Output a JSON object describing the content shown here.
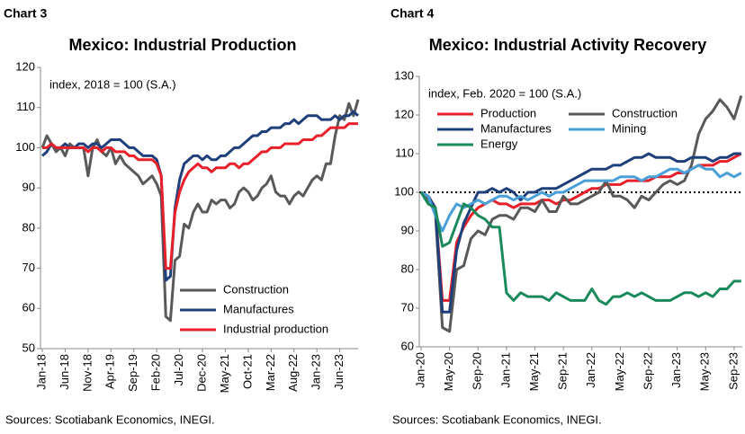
{
  "chart_data": [
    {
      "type": "line",
      "label": "Chart 3",
      "title": "Mexico: Industrial Production",
      "subtitle": "index, 2018 = 100 (S.A.)",
      "source": "Sources: Scotiabank Economics, INEGI.",
      "categories": [
        "Jan-18",
        null,
        null,
        null,
        null,
        "Jun-18",
        null,
        null,
        null,
        null,
        "Nov-18",
        null,
        null,
        null,
        null,
        "Apr-19",
        null,
        null,
        null,
        null,
        "Sep-19",
        null,
        null,
        null,
        null,
        "Feb-20",
        null,
        null,
        null,
        null,
        "Jul-20",
        null,
        null,
        null,
        null,
        "Dec-20",
        null,
        null,
        null,
        null,
        "May-21",
        null,
        null,
        null,
        null,
        "Oct-21",
        null,
        null,
        null,
        null,
        "Mar-22",
        null,
        null,
        null,
        null,
        "Aug-22",
        null,
        null,
        null,
        null,
        "Jan-23",
        null,
        null,
        null,
        null,
        "Jun-23",
        null,
        null,
        null,
        null
      ],
      "series": [
        {
          "name": "Construction",
          "color": "#595959",
          "values": [
            100,
            103,
            101,
            99,
            100,
            98,
            101,
            100,
            100,
            100,
            93,
            100,
            102,
            99,
            98,
            100,
            96,
            98,
            96,
            95,
            94,
            93,
            91,
            92,
            93,
            91,
            88,
            58,
            57,
            72,
            73,
            81,
            80,
            84,
            86,
            84,
            84,
            87,
            86,
            87,
            87,
            85,
            86,
            89,
            90,
            89,
            87,
            88,
            90,
            91,
            93,
            89,
            88,
            88,
            86,
            88,
            89,
            88,
            90,
            92,
            93,
            92,
            96,
            96,
            103,
            108,
            107,
            111,
            108,
            112
          ]
        },
        {
          "name": "Manufactures",
          "color": "#1f3f7a",
          "values": [
            98,
            99,
            101,
            100,
            100,
            101,
            100,
            100,
            101,
            101,
            100,
            101,
            101,
            100,
            101,
            102,
            102,
            102,
            101,
            100,
            100,
            99,
            98,
            98,
            98,
            97,
            93,
            67,
            68,
            85,
            92,
            96,
            97,
            98,
            98,
            97,
            98,
            97,
            97,
            98,
            98,
            99,
            100,
            100,
            101,
            102,
            103,
            103,
            104,
            104,
            105,
            105,
            105,
            106,
            106,
            107,
            106,
            107,
            108,
            108,
            108,
            107,
            107,
            107,
            108,
            107,
            108,
            108,
            109,
            108
          ]
        },
        {
          "name": "Industrial production",
          "color": "#e8202a",
          "values": [
            100,
            100,
            101,
            100,
            100,
            100,
            100,
            100,
            100,
            100,
            99,
            100,
            100,
            99,
            100,
            100,
            99,
            99,
            99,
            98,
            98,
            97,
            97,
            97,
            97,
            96,
            93,
            70,
            70,
            84,
            89,
            92,
            94,
            95,
            96,
            95,
            95,
            94,
            95,
            95,
            95,
            96,
            96,
            95,
            96,
            96,
            97,
            98,
            99,
            99,
            100,
            100,
            100,
            101,
            101,
            101,
            101,
            102,
            102,
            102,
            103,
            103,
            104,
            105,
            105,
            105,
            105,
            106,
            106,
            106
          ]
        }
      ],
      "ylim": [
        50,
        120
      ],
      "yticks": [
        50,
        60,
        70,
        80,
        90,
        100,
        110,
        120
      ],
      "legend": "lower right"
    },
    {
      "type": "line",
      "label": "Chart 4",
      "title": "Mexico: Industrial Activity Recovery",
      "subtitle": "index, Feb. 2020 = 100 (S.A.)",
      "source": "Sources: Scotiabank Economics, INEGI.",
      "categories": [
        "Jan-20",
        null,
        null,
        null,
        "May-20",
        null,
        null,
        null,
        "Sep-20",
        null,
        null,
        null,
        "Jan-21",
        null,
        null,
        null,
        "May-21",
        null,
        null,
        null,
        "Sep-21",
        null,
        null,
        null,
        "Jan-22",
        null,
        null,
        null,
        "May-22",
        null,
        null,
        null,
        "Sep-22",
        null,
        null,
        null,
        "Jan-23",
        null,
        null,
        null,
        "May-23",
        null,
        null,
        null,
        "Sep-23",
        null
      ],
      "series": [
        {
          "name": "Production",
          "color": "#e8202a",
          "values": [
            100,
            99,
            96,
            72,
            72,
            87,
            91,
            94,
            96,
            97,
            98,
            97,
            97,
            96,
            97,
            97,
            97,
            98,
            98,
            97,
            98,
            98,
            99,
            100,
            101,
            101,
            102,
            102,
            102,
            103,
            103,
            103,
            103,
            104,
            104,
            104,
            105,
            105,
            106,
            107,
            107,
            107,
            108,
            108,
            109,
            110
          ]
        },
        {
          "name": "Construction",
          "color": "#595959",
          "values": [
            100,
            98,
            95,
            65,
            64,
            80,
            81,
            88,
            90,
            89,
            93,
            94,
            94,
            93,
            96,
            96,
            95,
            98,
            95,
            95,
            99,
            97,
            97,
            98,
            99,
            100,
            103,
            99,
            99,
            98,
            96,
            99,
            98,
            100,
            102,
            103,
            102,
            103,
            107,
            115,
            119,
            121,
            124,
            122,
            119,
            125
          ]
        },
        {
          "name": "Manufactures",
          "color": "#1f3f7a",
          "values": [
            100,
            99,
            96,
            69,
            69,
            85,
            92,
            96,
            100,
            100,
            101,
            100,
            101,
            100,
            98,
            100,
            100,
            101,
            101,
            101,
            102,
            103,
            104,
            105,
            106,
            106,
            106,
            107,
            107,
            108,
            109,
            109,
            110,
            109,
            109,
            109,
            108,
            108,
            109,
            109,
            109,
            108,
            109,
            109,
            110,
            110
          ]
        },
        {
          "name": "Mining",
          "color": "#4a9fd8",
          "values": [
            100,
            99,
            94,
            90,
            94,
            97,
            96,
            97,
            98,
            97,
            98,
            99,
            99,
            98,
            99,
            98,
            99,
            100,
            99,
            100,
            100,
            101,
            102,
            103,
            103,
            103,
            103,
            103,
            104,
            104,
            104,
            103,
            104,
            104,
            105,
            106,
            106,
            105,
            106,
            107,
            106,
            106,
            104,
            105,
            104,
            105
          ]
        },
        {
          "name": "Energy",
          "color": "#1a8a5a",
          "values": [
            100,
            97,
            96,
            86,
            87,
            92,
            97,
            96,
            94,
            93,
            91,
            91,
            74,
            72,
            74,
            73,
            73,
            73,
            72,
            74,
            73,
            72,
            72,
            72,
            75,
            72,
            71,
            73,
            73,
            74,
            73,
            74,
            73,
            72,
            72,
            72,
            73,
            74,
            74,
            73,
            74,
            73,
            75,
            75,
            77,
            77
          ]
        }
      ],
      "ylim": [
        60,
        130
      ],
      "yticks": [
        60,
        70,
        80,
        90,
        100,
        110,
        120,
        130
      ],
      "hline": 100,
      "legend": "upper left"
    }
  ]
}
